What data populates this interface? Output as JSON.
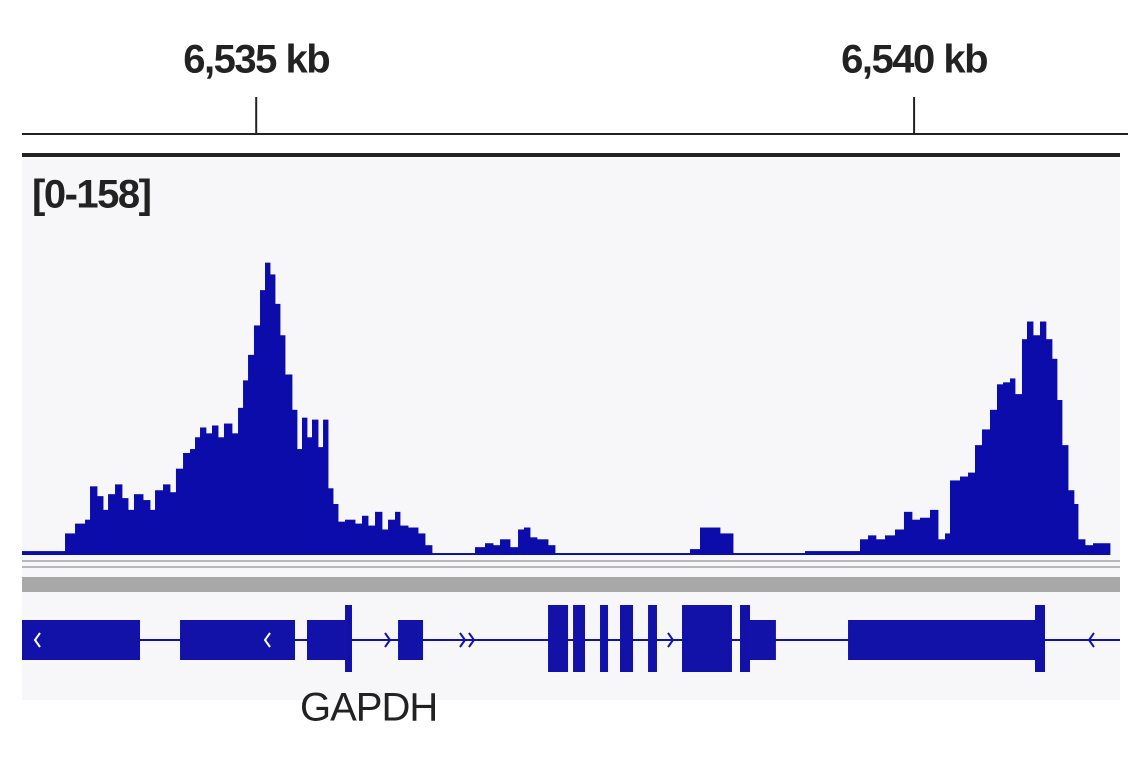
{
  "chart_data": {
    "type": "coverage",
    "xlim": [
      6533.22,
      6541.565
    ],
    "xticks": [
      {
        "value": 6535,
        "label": "6,535 kb"
      },
      {
        "value": 6540,
        "label": "6,540 kb"
      }
    ],
    "ylim": [
      0,
      158
    ],
    "data_range_label": "[0-158]",
    "color": "#0c0cab",
    "x": [
      6533.22,
      6533.547,
      6533.623,
      6533.699,
      6533.737,
      6533.79,
      6533.836,
      6533.874,
      6533.927,
      6533.98,
      6534.026,
      6534.071,
      6534.14,
      6534.193,
      6534.231,
      6534.292,
      6534.345,
      6534.39,
      6534.444,
      6534.497,
      6534.535,
      6534.573,
      6534.618,
      6534.664,
      6534.71,
      6534.755,
      6534.816,
      6534.862,
      6534.9,
      6534.938,
      6534.983,
      6535.029,
      6535.067,
      6535.105,
      6535.143,
      6535.181,
      6535.219,
      6535.272,
      6535.31,
      6535.348,
      6535.386,
      6535.424,
      6535.47,
      6535.508,
      6535.546,
      6535.584,
      6535.622,
      6535.675,
      6535.751,
      6535.804,
      6535.85,
      6535.903,
      6535.956,
      6536.002,
      6536.055,
      6536.093,
      6536.154,
      6536.23,
      6536.283,
      6536.336,
      6536.663,
      6536.739,
      6536.8,
      6536.853,
      6536.929,
      6536.99,
      6537.035,
      6537.081,
      6537.134,
      6537.218,
      6537.271,
      6538.297,
      6538.373,
      6538.525,
      6538.624,
      6539.171,
      6539.589,
      6539.65,
      6539.71,
      6539.779,
      6539.855,
      6539.923,
      6539.984,
      6540.045,
      6540.121,
      6540.182,
      6540.235,
      6540.273,
      6540.349,
      6540.41,
      6540.463,
      6540.516,
      6540.577,
      6540.63,
      6540.676,
      6540.729,
      6540.767,
      6540.82,
      6540.858,
      6540.904,
      6540.957,
      6541.002,
      6541.048,
      6541.086,
      6541.124,
      6541.17,
      6541.215,
      6541.246,
      6541.299,
      6541.36,
      6541.489
    ],
    "values": [
      2,
      11,
      16,
      18,
      35,
      30,
      23,
      31,
      36,
      29,
      23,
      31,
      28,
      23,
      33,
      36,
      32,
      44,
      52,
      54,
      60,
      65,
      62,
      66,
      60,
      67,
      62,
      75,
      89,
      102,
      117,
      135,
      149,
      143,
      128,
      112,
      92,
      74,
      54,
      70,
      60,
      69,
      55,
      69,
      34,
      26,
      17,
      18,
      16,
      20,
      15,
      22,
      13,
      18,
      22,
      15,
      14,
      11,
      5,
      1,
      4,
      6,
      5,
      8,
      4,
      13,
      14,
      9,
      8,
      5,
      1,
      3,
      14,
      11,
      1,
      2,
      8,
      10,
      8,
      10,
      13,
      22,
      18,
      19,
      23,
      8,
      11,
      38,
      40,
      42,
      56,
      64,
      74,
      87,
      88,
      90,
      82,
      110,
      119,
      112,
      119,
      110,
      100,
      79,
      56,
      33,
      26,
      8,
      5,
      6,
      0
    ],
    "gene_track": {
      "label": "GAPDH",
      "color": "#1212a8",
      "exons": [
        {
          "start": 6533.22,
          "end": 6534.117,
          "tall": false
        },
        {
          "start": 6534.421,
          "end": 6535.295,
          "tall": false
        },
        {
          "start": 6535.386,
          "end": 6535.675,
          "tall": false
        },
        {
          "start": 6535.675,
          "end": 6535.728,
          "tall": true
        },
        {
          "start": 6536.078,
          "end": 6536.268,
          "tall": false
        },
        {
          "start": 6537.218,
          "end": 6537.37,
          "tall": true
        },
        {
          "start": 6537.408,
          "end": 6537.499,
          "tall": true
        },
        {
          "start": 6537.613,
          "end": 6537.674,
          "tall": true
        },
        {
          "start": 6537.765,
          "end": 6537.864,
          "tall": true
        },
        {
          "start": 6537.978,
          "end": 6538.046,
          "tall": true
        },
        {
          "start": 6538.236,
          "end": 6538.616,
          "tall": true
        },
        {
          "start": 6538.677,
          "end": 6538.753,
          "tall": true
        },
        {
          "start": 6538.753,
          "end": 6538.95,
          "tall": false
        },
        {
          "start": 6539.498,
          "end": 6540.919,
          "tall": false
        },
        {
          "start": 6540.919,
          "end": 6540.995,
          "tall": true
        }
      ]
    }
  }
}
